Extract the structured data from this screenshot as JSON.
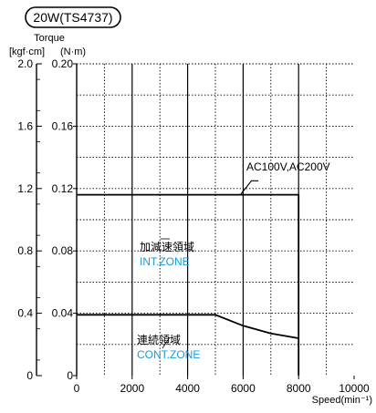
{
  "chart_data": {
    "type": "line",
    "title": "20W(TS4737)",
    "y_title": "Torque",
    "y_units_left": "[kgf·cm]",
    "y_units_right": "(N·m)",
    "xlabel": "Speed(min⁻¹)",
    "xlim": [
      0,
      10000
    ],
    "ylim_nm": [
      0,
      0.2
    ],
    "ylim_kgfcm": [
      0,
      2.0
    ],
    "grid": true,
    "x_ticks": [
      "0",
      "2000",
      "4000",
      "6000",
      "8000",
      "10000"
    ],
    "y_ticks_nm": [
      "0",
      "0.04",
      "0.08",
      "0.12",
      "0.16",
      "0.20"
    ],
    "y_ticks_kgfcm": [
      "0",
      "0.4",
      "0.8",
      "1.2",
      "1.6",
      "2.0"
    ],
    "series": [
      {
        "name": "INT.ZONE",
        "x": [
          0,
          8000,
          8000
        ],
        "y": [
          0.116,
          0.116,
          0
        ]
      },
      {
        "name": "CONT.ZONE",
        "x": [
          0,
          5000,
          6000,
          7000,
          8000
        ],
        "y": [
          0.039,
          0.039,
          0.032,
          0.027,
          0.024
        ]
      }
    ],
    "annotations": {
      "supply": "AC100V,AC200V",
      "int_zone_jp": "加減速領域",
      "int_zone_en": "INT.ZONE",
      "cont_zone_jp": "連続領域",
      "cont_zone_en": "CONT.ZONE"
    },
    "colors": {
      "line": "#000000",
      "zone_label_en": "#1a9ad6"
    }
  }
}
